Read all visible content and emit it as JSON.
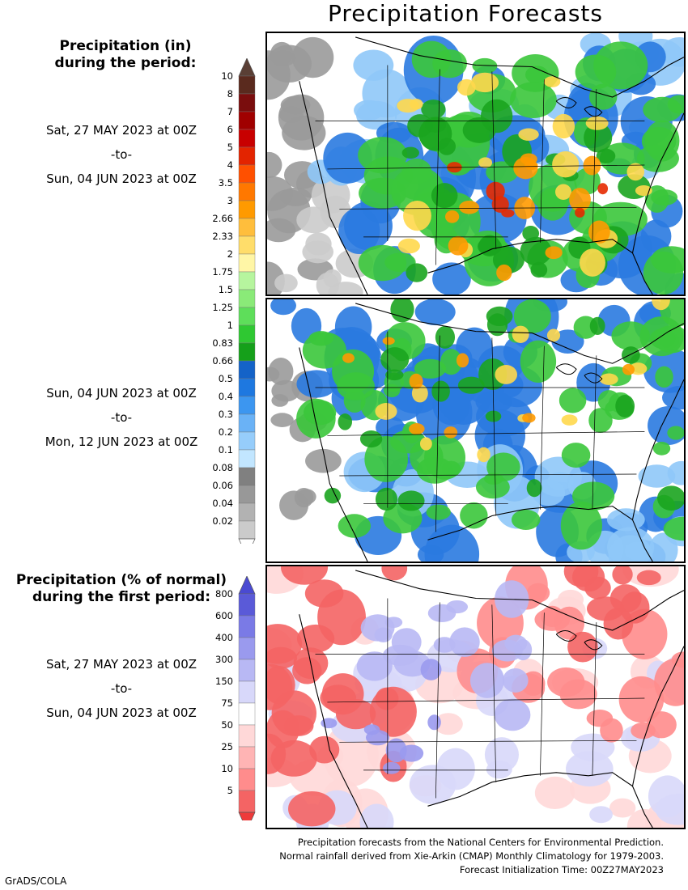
{
  "title": "Precipitation Forecasts",
  "top_section": {
    "title_line1": "Precipitation (in)",
    "title_line2": "during the period:",
    "period1": {
      "from": "Sat, 27 MAY 2023 at 00Z",
      "to_word": "-to-",
      "until": "Sun, 04 JUN 2023 at 00Z"
    },
    "period2": {
      "from": "Sun, 04 JUN 2023 at 00Z",
      "to_word": "-to-",
      "until": "Mon, 12 JUN 2023 at 00Z"
    },
    "legend_labels": [
      "10",
      "8",
      "7",
      "6",
      "5",
      "4",
      "3.5",
      "3",
      "2.66",
      "2.33",
      "2",
      "1.75",
      "1.5",
      "1.25",
      "1",
      "0.83",
      "0.66",
      "0.5",
      "0.4",
      "0.3",
      "0.2",
      "0.1",
      "0.08",
      "0.06",
      "0.04",
      "0.02"
    ],
    "legend_colors": [
      "#5a2a1e",
      "#7a0d0d",
      "#a00000",
      "#c80000",
      "#e32400",
      "#ff5000",
      "#ff7800",
      "#ff9a00",
      "#ffbe3c",
      "#ffdd6a",
      "#fff6a6",
      "#b6f59e",
      "#8aea78",
      "#5ede5a",
      "#2fc832",
      "#15a01a",
      "#1463c8",
      "#1e78e0",
      "#3c96f0",
      "#6ab2f6",
      "#96cdfb",
      "#c2e6ff",
      "#808080",
      "#989898",
      "#b2b2b2",
      "#cbcbcb"
    ],
    "legend_top_cap_color": "#5a3f35",
    "legend_bottom_cap_color": "#ffffff"
  },
  "bottom_section": {
    "title_line1": "Precipitation (% of normal)",
    "title_line2": "during the first period:",
    "period": {
      "from": "Sat, 27 MAY 2023 at 00Z",
      "to_word": "-to-",
      "until": "Sun, 04 JUN 2023 at 00Z"
    },
    "legend_labels": [
      "800",
      "600",
      "400",
      "300",
      "150",
      "75",
      "50",
      "25",
      "10",
      "5"
    ],
    "legend_colors": [
      "#5a5ad8",
      "#7a7ae6",
      "#9a9aee",
      "#b8b8f4",
      "#d8d8fa",
      "#ffffff",
      "#ffd8d8",
      "#ffb4b4",
      "#ff8c8c",
      "#f46464"
    ],
    "legend_top_cap_color": "#4a4ad2",
    "legend_bottom_cap_color": "#ee3a3a"
  },
  "footer": {
    "line1": "Precipitation forecasts from the National Centers for Environmental Prediction.",
    "line2": "Normal rainfall derived from Xie-Arkin (CMAP) Monthly Climatology for 1979-2003.",
    "line3": "Forecast Initialization Time: 00Z27MAY2023"
  },
  "credit": "GrADS/COLA"
}
